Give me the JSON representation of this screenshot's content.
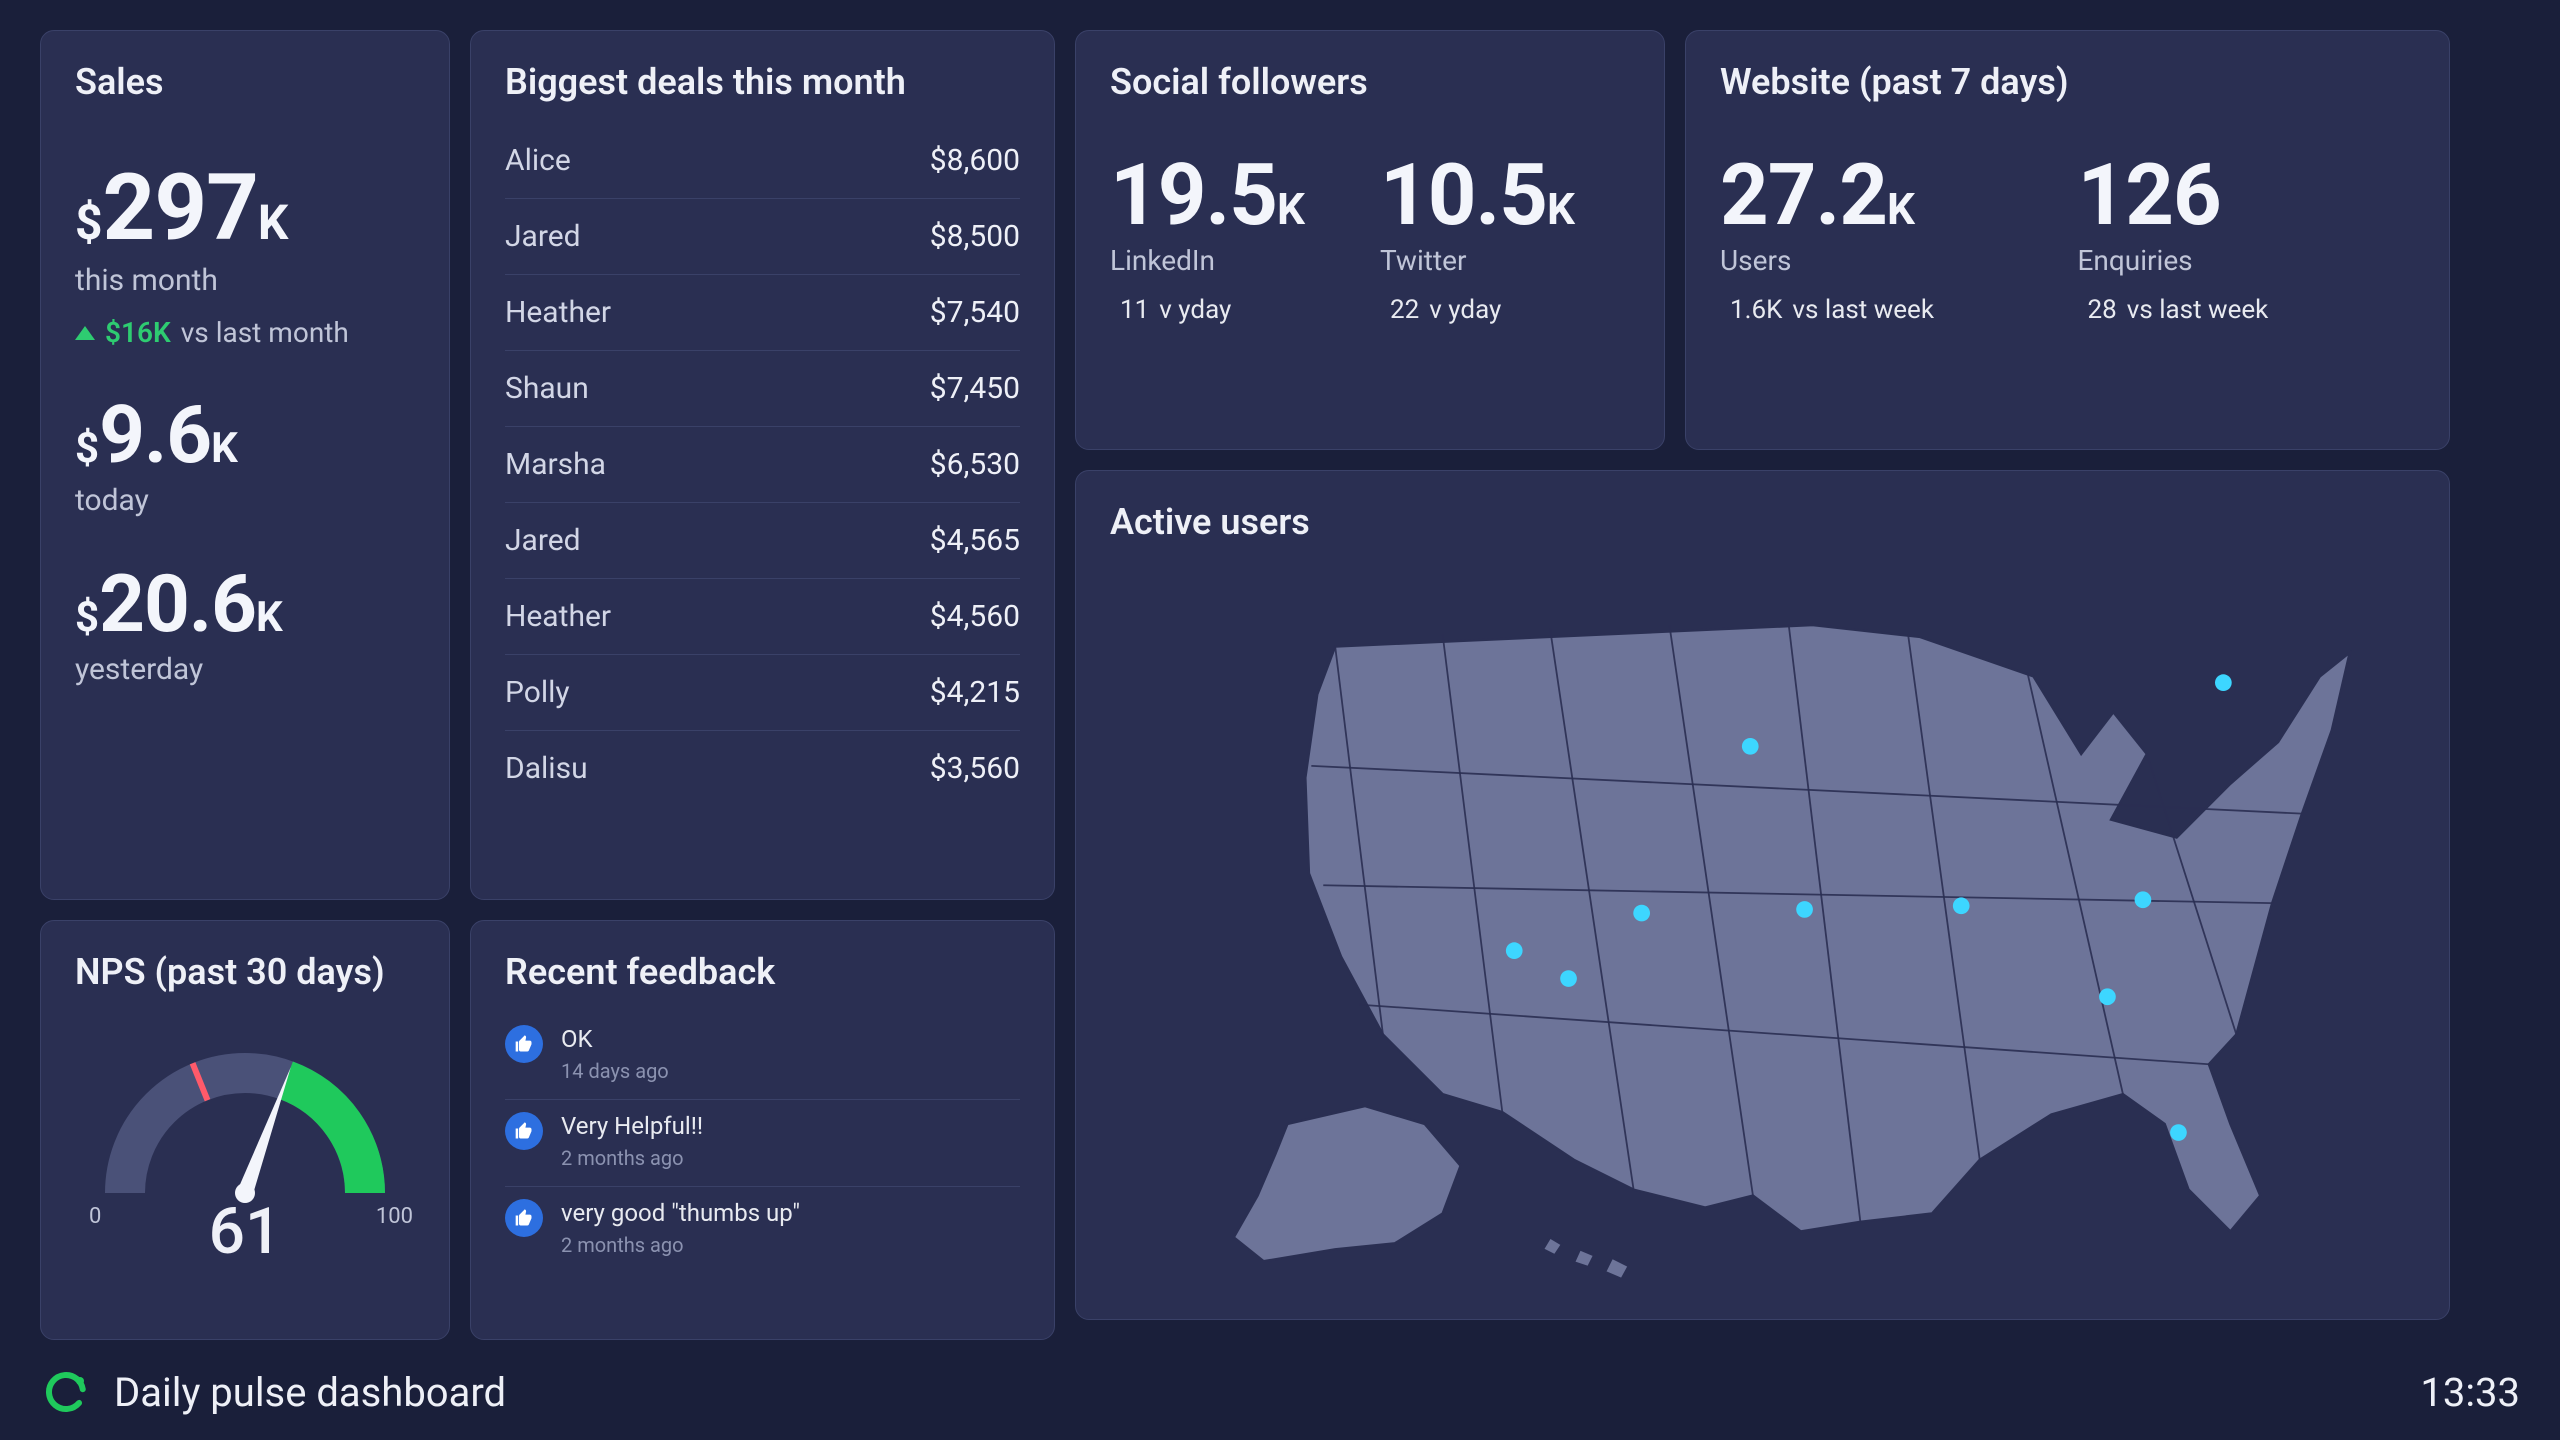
{
  "colors": {
    "bg": "#1a1f3a",
    "card_bg": "#2a2f52",
    "card_border": "#3a4168",
    "text_primary": "#eef0f7",
    "text_secondary": "#c0c5d8",
    "text_muted": "#8b92b0",
    "up": "#2ecc71",
    "down": "#ff5a6a",
    "accent_blue": "#2d6fe0",
    "map_fill": "#6d7499",
    "map_stroke": "#2a2f52",
    "map_point": "#3dd6ff",
    "gauge_track": "#4a5178",
    "gauge_fill": "#1fc95c",
    "gauge_mark": "#ff5a6a",
    "logo": "#1fc95c"
  },
  "sales": {
    "title": "Sales",
    "month": {
      "prefix": "$",
      "value": "297",
      "suffix": "K",
      "label": "this month"
    },
    "delta": {
      "direction": "up",
      "value": "$16K",
      "suffix": "vs last month"
    },
    "today": {
      "prefix": "$",
      "value": "9.6",
      "suffix": "K",
      "label": "today"
    },
    "yesterday": {
      "prefix": "$",
      "value": "20.6",
      "suffix": "K",
      "label": "yesterday"
    }
  },
  "deals": {
    "title": "Biggest deals this month",
    "rows": [
      {
        "name": "Alice",
        "amount": "$8,600"
      },
      {
        "name": "Jared",
        "amount": "$8,500"
      },
      {
        "name": "Heather",
        "amount": "$7,540"
      },
      {
        "name": "Shaun",
        "amount": "$7,450"
      },
      {
        "name": "Marsha",
        "amount": "$6,530"
      },
      {
        "name": "Jared",
        "amount": "$4,565"
      },
      {
        "name": "Heather",
        "amount": "$4,560"
      },
      {
        "name": "Polly",
        "amount": "$4,215"
      },
      {
        "name": "Dalisu",
        "amount": "$3,560"
      }
    ]
  },
  "social": {
    "title": "Social followers",
    "linkedin": {
      "value": "19.5",
      "suffix": "K",
      "label": "LinkedIn",
      "delta_dir": "up",
      "delta_value": "11",
      "delta_suffix": "v yday"
    },
    "twitter": {
      "value": "10.5",
      "suffix": "K",
      "label": "Twitter",
      "delta_dir": "up",
      "delta_value": "22",
      "delta_suffix": "v yday"
    }
  },
  "website": {
    "title": "Website (past 7 days)",
    "users": {
      "value": "27.2",
      "suffix": "K",
      "label": "Users",
      "delta_dir": "up",
      "delta_value": "1.6K",
      "delta_suffix": "vs last week"
    },
    "enquiries": {
      "value": "126",
      "suffix": "",
      "label": "Enquiries",
      "delta_dir": "down",
      "delta_value": "28",
      "delta_suffix": "vs last week"
    }
  },
  "nps": {
    "title": "NPS (past 30 days)",
    "min": "0",
    "max": "100",
    "value": "61",
    "value_angle_deg": 290,
    "red_mark_angle_deg": 248,
    "arc_track_color": "#4a5178",
    "arc_fill_color": "#1fc95c",
    "needle_color": "#f3f5fb"
  },
  "feedback": {
    "title": "Recent feedback",
    "items": [
      {
        "text": "OK",
        "when": "14 days ago"
      },
      {
        "text": "Very Helpful!!",
        "when": "2 months ago"
      },
      {
        "text": "very good \"thumbs up\"",
        "when": "2 months ago"
      }
    ]
  },
  "active_users": {
    "title": "Active users",
    "map_fill": "#6d7499",
    "map_stroke": "#2a2f52",
    "point_color": "#3dd6ff",
    "point_radius": 7,
    "points": [
      {
        "x": 0.426,
        "y": 0.2
      },
      {
        "x": 0.879,
        "y": 0.095
      },
      {
        "x": 0.322,
        "y": 0.475
      },
      {
        "x": 0.478,
        "y": 0.469
      },
      {
        "x": 0.2,
        "y": 0.537
      },
      {
        "x": 0.628,
        "y": 0.463
      },
      {
        "x": 0.802,
        "y": 0.453
      },
      {
        "x": 0.768,
        "y": 0.613
      },
      {
        "x": 0.836,
        "y": 0.837
      },
      {
        "x": 0.252,
        "y": 0.583
      }
    ]
  },
  "footer": {
    "title": "Daily pulse dashboard",
    "time": "13:33"
  }
}
